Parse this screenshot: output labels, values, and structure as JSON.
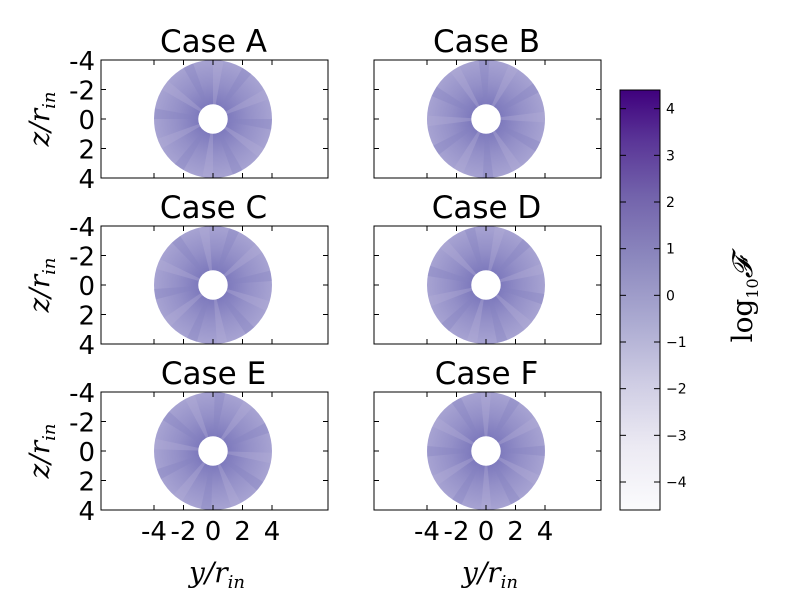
{
  "panels": [
    {
      "title": "Case A"
    },
    {
      "title": "Case B"
    },
    {
      "title": "Case C"
    },
    {
      "title": "Case D"
    },
    {
      "title": "Case E"
    },
    {
      "title": "Case F"
    }
  ],
  "axes": {
    "ylabel_var": "z/r",
    "xlabel_var": "y/r",
    "label_subscript": "in",
    "yticks": [
      "-4",
      "-2",
      "0",
      "2",
      "4"
    ],
    "xticks": [
      "-4",
      "-2",
      "0",
      "2",
      "4"
    ]
  },
  "colorbar": {
    "label_prefix": "log",
    "label_sub": "10",
    "label_symbol": "𝓕",
    "ticks": [
      "4",
      "3",
      "2",
      "1",
      "0",
      "−1",
      "−2",
      "−3",
      "−4"
    ],
    "range": [
      -4.6,
      4.4
    ],
    "color_low": "#fbfbfd",
    "color_high": "#3f007d"
  },
  "chart_data": [
    {
      "type": "heatmap",
      "title": "Case A",
      "xlabel": "",
      "ylabel": "z/r_in",
      "xlim": [
        -4,
        4
      ],
      "ylim": [
        -4,
        4
      ],
      "inner_radius": 1,
      "outer_radius": 4,
      "typical_log10F": 0.6
    },
    {
      "type": "heatmap",
      "title": "Case B",
      "xlabel": "",
      "ylabel": "",
      "xlim": [
        -4,
        4
      ],
      "ylim": [
        -4,
        4
      ],
      "inner_radius": 1,
      "outer_radius": 4,
      "typical_log10F": 0.6
    },
    {
      "type": "heatmap",
      "title": "Case C",
      "xlabel": "",
      "ylabel": "z/r_in",
      "xlim": [
        -4,
        4
      ],
      "ylim": [
        -4,
        4
      ],
      "inner_radius": 1,
      "outer_radius": 4,
      "typical_log10F": 0.6
    },
    {
      "type": "heatmap",
      "title": "Case D",
      "xlabel": "",
      "ylabel": "",
      "xlim": [
        -4,
        4
      ],
      "ylim": [
        -4,
        4
      ],
      "inner_radius": 1,
      "outer_radius": 4,
      "typical_log10F": 0.6
    },
    {
      "type": "heatmap",
      "title": "Case E",
      "xlabel": "y/r_in",
      "ylabel": "z/r_in",
      "xlim": [
        -4,
        4
      ],
      "ylim": [
        -4,
        4
      ],
      "inner_radius": 1,
      "outer_radius": 4,
      "typical_log10F": 0.6
    },
    {
      "type": "heatmap",
      "title": "Case F",
      "xlabel": "y/r_in",
      "ylabel": "",
      "xlim": [
        -4,
        4
      ],
      "ylim": [
        -4,
        4
      ],
      "inner_radius": 1,
      "outer_radius": 4,
      "typical_log10F": 0.6
    }
  ]
}
